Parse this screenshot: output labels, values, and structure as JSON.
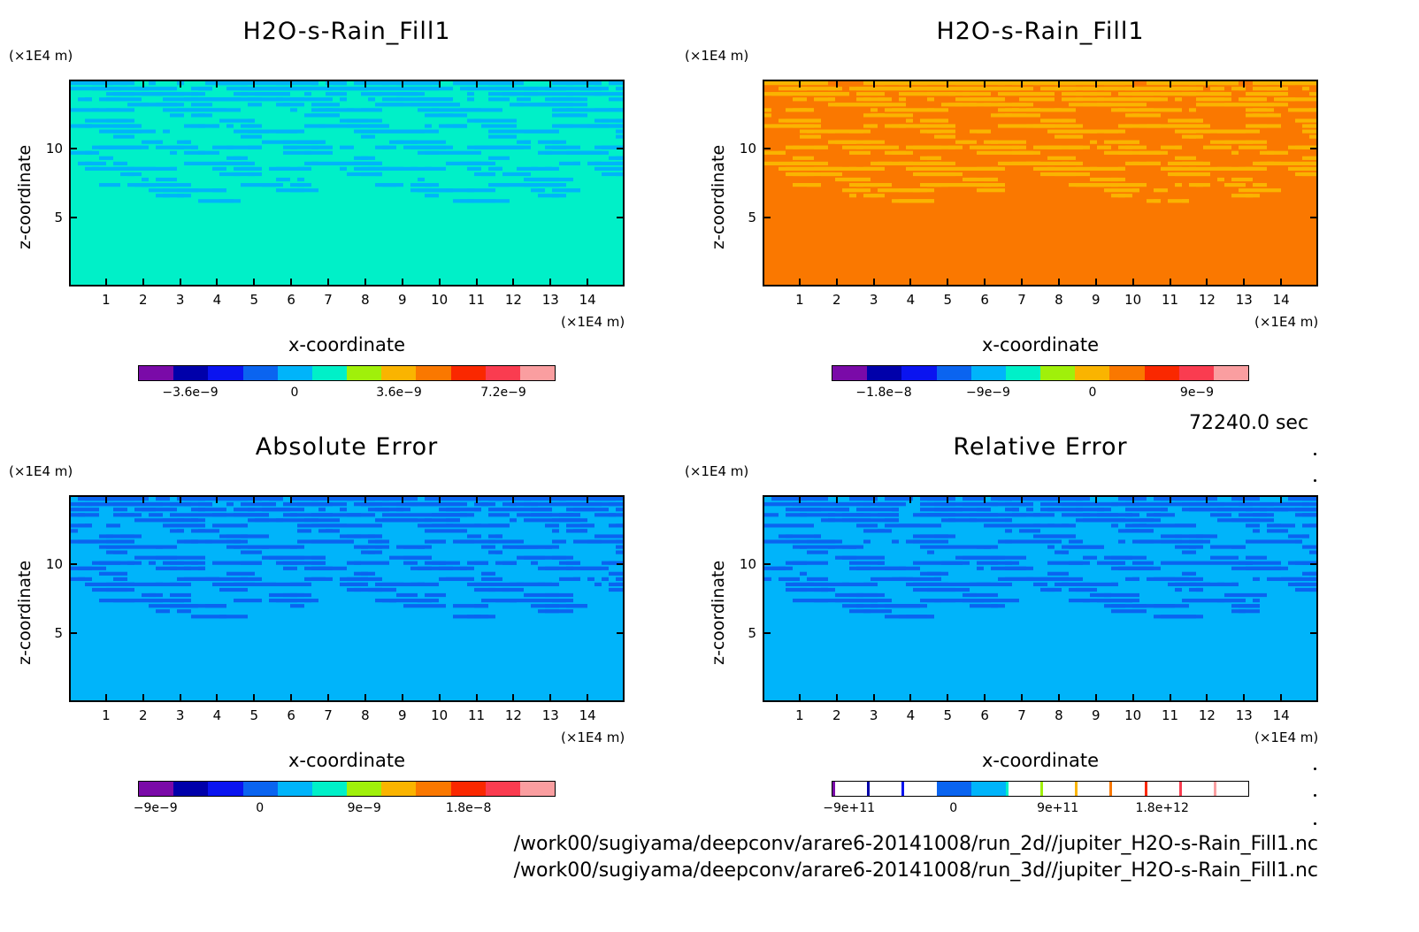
{
  "colors": {
    "cmap": [
      "#7a0aa8",
      "#0000aa",
      "#0a14f0",
      "#0a64f0",
      "#00b4fa",
      "#00f0c8",
      "#a0f00a",
      "#fab400",
      "#fa7800",
      "#fa2800",
      "#fa3c50",
      "#fa9ea0"
    ]
  },
  "time_label": "72240.0 sec",
  "footer": {
    "line1": "/work00/sugiyama/deepconv/arare6-20141008/run_2d//jupiter_H2O-s-Rain_Fill1.nc",
    "line2": "/work00/sugiyama/deepconv/arare6-20141008/run_3d//jupiter_H2O-s-Rain_Fill1.nc"
  },
  "chart_data": [
    {
      "type": "heatmap",
      "title": "H2O-s-Rain_Fill1",
      "xlabel": "x-coordinate",
      "ylabel": "z-coordinate",
      "x_unit": "(×1E4 m)",
      "y_unit": "(×1E4 m)",
      "xlim": [
        0,
        15
      ],
      "ylim": [
        0,
        15
      ],
      "xticks": [
        "1",
        "2",
        "3",
        "4",
        "5",
        "6",
        "7",
        "8",
        "9",
        "10",
        "11",
        "12",
        "13",
        "14"
      ],
      "yticks": [
        "5",
        "10"
      ],
      "background_level": 5,
      "band_level": 4,
      "colorbar": {
        "levels": 12,
        "ticks": [
          "−3.6e−9",
          "0",
          "3.6e−9",
          "7.2e−9"
        ],
        "tick_values": [
          1.5,
          4.5,
          7.5,
          10.5
        ],
        "outlined": false
      }
    },
    {
      "type": "heatmap",
      "title": "H2O-s-Rain_Fill1",
      "xlabel": "x-coordinate",
      "ylabel": "z-coordinate",
      "x_unit": "(×1E4 m)",
      "y_unit": "(×1E4 m)",
      "xlim": [
        0,
        15
      ],
      "ylim": [
        0,
        15
      ],
      "xticks": [
        "1",
        "2",
        "3",
        "4",
        "5",
        "6",
        "7",
        "8",
        "9",
        "10",
        "11",
        "12",
        "13",
        "14"
      ],
      "yticks": [
        "5",
        "10"
      ],
      "background_level": 8,
      "band_level": 7,
      "colorbar": {
        "levels": 12,
        "ticks": [
          "−1.8e−8",
          "−9e−9",
          "0",
          "9e−9"
        ],
        "tick_values": [
          1.5,
          4.5,
          7.5,
          10.5
        ],
        "outlined": false
      }
    },
    {
      "type": "heatmap",
      "title": "Absolute Error",
      "xlabel": "x-coordinate",
      "ylabel": "z-coordinate",
      "x_unit": "(×1E4 m)",
      "y_unit": "(×1E4 m)",
      "xlim": [
        0,
        15
      ],
      "ylim": [
        0,
        15
      ],
      "xticks": [
        "1",
        "2",
        "3",
        "4",
        "5",
        "6",
        "7",
        "8",
        "9",
        "10",
        "11",
        "12",
        "13",
        "14"
      ],
      "yticks": [
        "5",
        "10"
      ],
      "background_level": 4,
      "band_level": 3,
      "colorbar": {
        "levels": 12,
        "ticks": [
          "−9e−9",
          "0",
          "9e−9",
          "1.8e−8"
        ],
        "tick_values": [
          0.5,
          3.5,
          6.5,
          9.5
        ],
        "outlined": false
      }
    },
    {
      "type": "heatmap",
      "title": "Relative Error",
      "xlabel": "x-coordinate",
      "ylabel": "z-coordinate",
      "x_unit": "(×1E4 m)",
      "y_unit": "(×1E4 m)",
      "xlim": [
        0,
        15
      ],
      "ylim": [
        0,
        15
      ],
      "xticks": [
        "1",
        "2",
        "3",
        "4",
        "5",
        "6",
        "7",
        "8",
        "9",
        "10",
        "11",
        "12",
        "13",
        "14"
      ],
      "yticks": [
        "5",
        "10"
      ],
      "background_level": 4,
      "band_level": 3,
      "colorbar": {
        "levels": 12,
        "ticks": [
          "−9e+11",
          "0",
          "9e+11",
          "1.8e+12"
        ],
        "tick_values": [
          0.5,
          3.5,
          6.5,
          9.5
        ],
        "outlined": true
      }
    }
  ]
}
